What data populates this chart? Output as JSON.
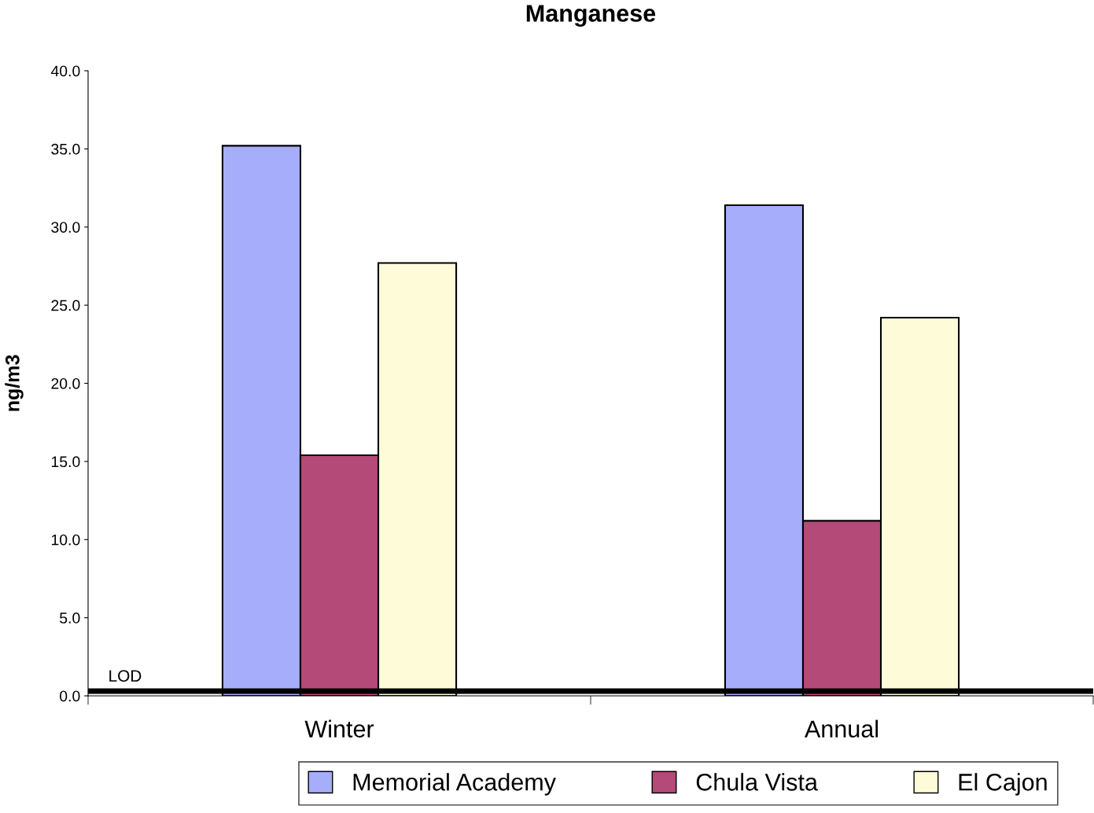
{
  "chart_data": {
    "type": "bar",
    "title": "Manganese",
    "ylabel": "ng/m3",
    "categories": [
      "Winter",
      "Annual"
    ],
    "series": [
      {
        "name": "Memorial Academy",
        "color": "#a6aefb",
        "values": [
          35.2,
          31.4
        ]
      },
      {
        "name": "Chula Vista",
        "color": "#b34a77",
        "values": [
          15.4,
          11.2
        ]
      },
      {
        "name": "El Cajon",
        "color": "#fefcd8",
        "values": [
          27.7,
          24.2
        ]
      }
    ],
    "ylim": [
      0,
      40
    ],
    "yticks": [
      {
        "value": 0,
        "label": "0.0"
      },
      {
        "value": 5,
        "label": "5.0"
      },
      {
        "value": 10,
        "label": "10.0"
      },
      {
        "value": 15,
        "label": "15.0"
      },
      {
        "value": 20,
        "label": "20.0"
      },
      {
        "value": 25,
        "label": "25.0"
      },
      {
        "value": 30,
        "label": "30.0"
      },
      {
        "value": 35,
        "label": "35.0"
      },
      {
        "value": 40,
        "label": "40.0"
      }
    ],
    "ref_lines": [
      {
        "axis": "y",
        "value": 0.3,
        "label": "LOD",
        "color": "#000000"
      }
    ],
    "grid": false,
    "legend": "bottom"
  }
}
